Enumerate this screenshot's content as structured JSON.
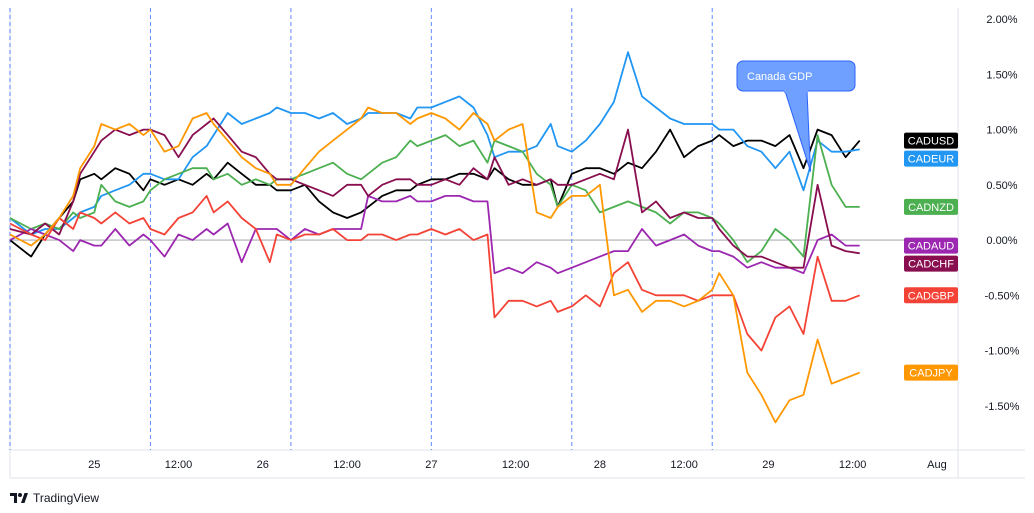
{
  "chart_data": {
    "type": "line",
    "title": "",
    "xlabel": "",
    "ylabel": "",
    "ylim": [
      -1.9,
      2.1
    ],
    "y_ticks": [
      "2.00%",
      "1.50%",
      "1.00%",
      "0.50%",
      "0.00%",
      "-0.50%",
      "-1.00%",
      "-1.50%"
    ],
    "y_tick_values": [
      2.0,
      1.5,
      1.0,
      0.5,
      0.0,
      -0.5,
      -1.0,
      -1.5
    ],
    "x_ticks": [
      "25",
      "12:00",
      "26",
      "12:00",
      "27",
      "12:00",
      "28",
      "12:00",
      "29",
      "12:00",
      "Aug"
    ],
    "x_tick_values": [
      12,
      24,
      36,
      48,
      60,
      72,
      84,
      96,
      108,
      120,
      132
    ],
    "day_separators": [
      0,
      20,
      40,
      60,
      80,
      100
    ],
    "grid": "zero line and dashed day separators",
    "legend": "right-edge value tags",
    "annotation": {
      "text": "Canada GDP",
      "color": "#5b8ff9"
    },
    "series": [
      {
        "name": "CADUSD",
        "color": "#000000",
        "x": [
          0,
          3,
          5,
          7,
          9,
          10,
          12,
          13,
          15,
          17,
          19,
          20,
          22,
          24,
          26,
          28,
          29,
          31,
          33,
          35,
          37,
          38,
          40,
          42,
          44,
          46,
          48,
          50,
          51,
          53,
          55,
          57,
          58,
          60,
          62,
          64,
          66,
          68,
          69,
          71,
          73,
          75,
          77,
          78,
          80,
          82,
          84,
          86,
          88,
          90,
          92,
          94,
          96,
          98,
          100,
          101,
          103,
          105,
          107,
          109,
          111,
          113,
          115,
          117,
          119,
          121
        ],
        "y": [
          0.0,
          -0.15,
          0.05,
          0.2,
          0.35,
          0.55,
          0.6,
          0.55,
          0.65,
          0.6,
          0.45,
          0.55,
          0.5,
          0.55,
          0.5,
          0.6,
          0.55,
          0.7,
          0.6,
          0.5,
          0.5,
          0.45,
          0.45,
          0.5,
          0.35,
          0.25,
          0.2,
          0.25,
          0.3,
          0.4,
          0.45,
          0.45,
          0.5,
          0.55,
          0.55,
          0.6,
          0.6,
          0.55,
          0.65,
          0.55,
          0.5,
          0.5,
          0.55,
          0.3,
          0.6,
          0.65,
          0.65,
          0.6,
          0.7,
          0.65,
          0.8,
          1.0,
          0.75,
          0.85,
          0.9,
          0.95,
          0.85,
          0.9,
          0.9,
          0.85,
          0.95,
          0.65,
          1.0,
          0.95,
          0.75,
          0.9
        ]
      },
      {
        "name": "CADEUR",
        "color": "#2196f3",
        "x": [
          0,
          3,
          5,
          7,
          9,
          10,
          12,
          13,
          15,
          17,
          19,
          20,
          22,
          24,
          26,
          28,
          29,
          31,
          33,
          35,
          37,
          38,
          40,
          42,
          44,
          46,
          48,
          50,
          51,
          53,
          55,
          57,
          58,
          60,
          62,
          64,
          66,
          68,
          69,
          71,
          73,
          75,
          77,
          78,
          80,
          82,
          84,
          86,
          88,
          90,
          92,
          94,
          96,
          98,
          100,
          101,
          103,
          105,
          107,
          109,
          111,
          113,
          115,
          117,
          119,
          121
        ],
        "y": [
          0.2,
          0.05,
          0.1,
          0.1,
          0.2,
          0.25,
          0.3,
          0.4,
          0.45,
          0.5,
          0.6,
          0.6,
          0.55,
          0.55,
          0.75,
          0.85,
          0.95,
          1.15,
          1.05,
          1.1,
          1.15,
          1.2,
          1.15,
          1.15,
          1.1,
          1.15,
          1.05,
          1.1,
          1.15,
          1.15,
          1.15,
          1.1,
          1.2,
          1.2,
          1.25,
          1.3,
          1.2,
          0.95,
          0.75,
          0.8,
          0.8,
          0.85,
          1.05,
          0.85,
          0.8,
          0.9,
          1.05,
          1.25,
          1.7,
          1.3,
          1.2,
          1.1,
          1.05,
          1.05,
          1.05,
          1.0,
          1.0,
          0.85,
          0.8,
          0.65,
          0.8,
          0.45,
          0.9,
          0.8,
          0.8,
          0.82
        ]
      },
      {
        "name": "CADNZD",
        "color": "#4caf50",
        "x": [
          0,
          3,
          5,
          7,
          9,
          10,
          12,
          13,
          15,
          17,
          19,
          20,
          22,
          24,
          26,
          28,
          29,
          31,
          33,
          35,
          37,
          38,
          40,
          42,
          44,
          46,
          48,
          50,
          51,
          53,
          55,
          57,
          58,
          60,
          62,
          64,
          66,
          68,
          69,
          71,
          73,
          75,
          77,
          78,
          80,
          82,
          84,
          86,
          88,
          90,
          92,
          94,
          96,
          98,
          100,
          101,
          103,
          105,
          107,
          109,
          111,
          113,
          115,
          117,
          119,
          121
        ],
        "y": [
          0.2,
          0.1,
          0.15,
          0.1,
          0.25,
          0.2,
          0.25,
          0.5,
          0.35,
          0.3,
          0.35,
          0.45,
          0.55,
          0.6,
          0.65,
          0.65,
          0.55,
          0.6,
          0.5,
          0.55,
          0.5,
          0.55,
          0.55,
          0.6,
          0.65,
          0.7,
          0.6,
          0.55,
          0.6,
          0.7,
          0.75,
          0.9,
          0.85,
          0.9,
          0.95,
          0.85,
          0.9,
          0.7,
          0.9,
          0.85,
          0.8,
          0.6,
          0.5,
          0.3,
          0.5,
          0.45,
          0.25,
          0.3,
          0.35,
          0.3,
          0.25,
          0.15,
          0.25,
          0.25,
          0.2,
          0.15,
          0.0,
          -0.2,
          -0.1,
          0.1,
          0.0,
          -0.15,
          0.95,
          0.5,
          0.3,
          0.3
        ]
      },
      {
        "name": "CADAUD",
        "color": "#9c27b0",
        "x": [
          0,
          3,
          5,
          7,
          9,
          10,
          12,
          13,
          15,
          17,
          19,
          20,
          22,
          24,
          26,
          28,
          29,
          31,
          33,
          35,
          37,
          38,
          40,
          42,
          44,
          46,
          48,
          50,
          51,
          53,
          55,
          57,
          58,
          60,
          62,
          64,
          66,
          68,
          69,
          71,
          73,
          75,
          77,
          78,
          80,
          82,
          84,
          86,
          88,
          90,
          92,
          94,
          96,
          98,
          100,
          101,
          103,
          105,
          107,
          109,
          111,
          113,
          115,
          117,
          119,
          121
        ],
        "y": [
          0.0,
          0.1,
          0.05,
          0.0,
          -0.1,
          0.0,
          -0.05,
          -0.05,
          0.1,
          -0.05,
          0.05,
          0.0,
          -0.15,
          0.05,
          0.0,
          0.1,
          0.05,
          0.15,
          -0.2,
          0.1,
          0.1,
          0.1,
          0.0,
          0.1,
          0.05,
          0.1,
          0.1,
          0.1,
          0.4,
          0.35,
          0.35,
          0.4,
          0.35,
          0.35,
          0.4,
          0.4,
          0.35,
          0.35,
          -0.3,
          -0.25,
          -0.3,
          -0.2,
          -0.25,
          -0.3,
          -0.25,
          -0.2,
          -0.15,
          -0.1,
          -0.1,
          0.1,
          -0.05,
          0.0,
          0.05,
          -0.05,
          -0.1,
          -0.1,
          -0.15,
          -0.25,
          -0.2,
          -0.25,
          -0.25,
          -0.3,
          0.0,
          0.05,
          -0.05,
          -0.05
        ]
      },
      {
        "name": "CADCHF",
        "color": "#880e4f",
        "x": [
          0,
          3,
          5,
          7,
          9,
          10,
          12,
          13,
          15,
          17,
          19,
          20,
          22,
          24,
          26,
          28,
          29,
          31,
          33,
          35,
          37,
          38,
          40,
          42,
          44,
          46,
          48,
          50,
          51,
          53,
          55,
          57,
          58,
          60,
          62,
          64,
          66,
          68,
          69,
          71,
          73,
          75,
          77,
          78,
          80,
          82,
          84,
          86,
          88,
          90,
          92,
          94,
          96,
          98,
          100,
          101,
          103,
          105,
          107,
          109,
          111,
          113,
          115,
          117,
          119,
          121
        ],
        "y": [
          0.1,
          0.05,
          0.15,
          0.05,
          0.35,
          0.6,
          0.8,
          0.9,
          1.0,
          0.95,
          1.0,
          1.0,
          0.95,
          0.75,
          0.95,
          1.05,
          1.1,
          0.95,
          0.8,
          0.75,
          0.6,
          0.55,
          0.55,
          0.5,
          0.45,
          0.4,
          0.5,
          0.5,
          0.4,
          0.5,
          0.55,
          0.55,
          0.5,
          0.5,
          0.55,
          0.5,
          0.65,
          0.55,
          0.75,
          0.5,
          0.55,
          0.5,
          0.55,
          0.5,
          0.5,
          0.55,
          0.6,
          0.55,
          1.0,
          0.25,
          0.35,
          0.2,
          0.25,
          0.2,
          0.2,
          0.1,
          -0.05,
          -0.15,
          -0.15,
          -0.2,
          -0.25,
          -0.25,
          0.5,
          -0.05,
          -0.1,
          -0.12
        ]
      },
      {
        "name": "CADGBP",
        "color": "#f44336",
        "x": [
          0,
          3,
          5,
          7,
          9,
          10,
          12,
          13,
          15,
          17,
          19,
          20,
          22,
          24,
          26,
          28,
          29,
          31,
          33,
          35,
          37,
          38,
          40,
          42,
          44,
          46,
          48,
          50,
          51,
          53,
          55,
          57,
          58,
          60,
          62,
          64,
          66,
          68,
          69,
          71,
          73,
          75,
          77,
          78,
          80,
          82,
          84,
          86,
          88,
          90,
          92,
          94,
          96,
          98,
          100,
          101,
          103,
          105,
          107,
          109,
          111,
          113,
          115,
          117,
          119,
          121
        ],
        "y": [
          0.15,
          0.05,
          0.0,
          0.2,
          0.1,
          0.25,
          0.2,
          0.15,
          0.25,
          0.15,
          0.2,
          0.1,
          0.05,
          0.2,
          0.25,
          0.4,
          0.25,
          0.35,
          0.2,
          0.1,
          -0.2,
          0.05,
          0.0,
          0.05,
          0.05,
          0.1,
          0.0,
          0.0,
          0.05,
          0.05,
          0.0,
          0.05,
          0.05,
          0.1,
          0.05,
          0.1,
          0.0,
          0.05,
          -0.7,
          -0.55,
          -0.55,
          -0.6,
          -0.55,
          -0.65,
          -0.6,
          -0.5,
          -0.6,
          -0.3,
          -0.2,
          -0.45,
          -0.5,
          -0.5,
          -0.5,
          -0.55,
          -0.5,
          -0.5,
          -0.5,
          -0.85,
          -1.0,
          -0.7,
          -0.6,
          -0.85,
          -0.15,
          -0.55,
          -0.55,
          -0.5
        ]
      },
      {
        "name": "CADJPY",
        "color": "#ff9800",
        "x": [
          0,
          3,
          5,
          7,
          9,
          10,
          12,
          13,
          15,
          17,
          19,
          20,
          22,
          24,
          26,
          28,
          29,
          31,
          33,
          35,
          37,
          38,
          40,
          42,
          44,
          46,
          48,
          50,
          51,
          53,
          55,
          57,
          58,
          60,
          62,
          64,
          66,
          68,
          69,
          71,
          73,
          75,
          77,
          78,
          80,
          82,
          84,
          86,
          88,
          90,
          92,
          94,
          96,
          98,
          100,
          101,
          103,
          105,
          107,
          109,
          111,
          113,
          115,
          117,
          119,
          121
        ],
        "y": [
          0.05,
          -0.05,
          0.05,
          0.2,
          0.4,
          0.65,
          0.85,
          1.05,
          1.0,
          1.05,
          0.95,
          1.0,
          0.8,
          0.85,
          1.1,
          1.15,
          1.05,
          0.9,
          0.75,
          0.65,
          0.6,
          0.5,
          0.5,
          0.65,
          0.8,
          0.9,
          1.0,
          1.1,
          1.2,
          1.15,
          1.15,
          1.05,
          1.1,
          1.15,
          1.1,
          1.0,
          1.15,
          1.05,
          0.9,
          1.0,
          1.05,
          0.25,
          0.2,
          0.3,
          0.4,
          0.4,
          0.5,
          -0.5,
          -0.45,
          -0.65,
          -0.55,
          -0.55,
          -0.6,
          -0.55,
          -0.45,
          -0.3,
          -0.5,
          -1.2,
          -1.4,
          -1.65,
          -1.45,
          -1.4,
          -0.9,
          -1.3,
          -1.25,
          -1.2
        ]
      }
    ]
  },
  "branding": {
    "logo_text": "TradingView"
  }
}
